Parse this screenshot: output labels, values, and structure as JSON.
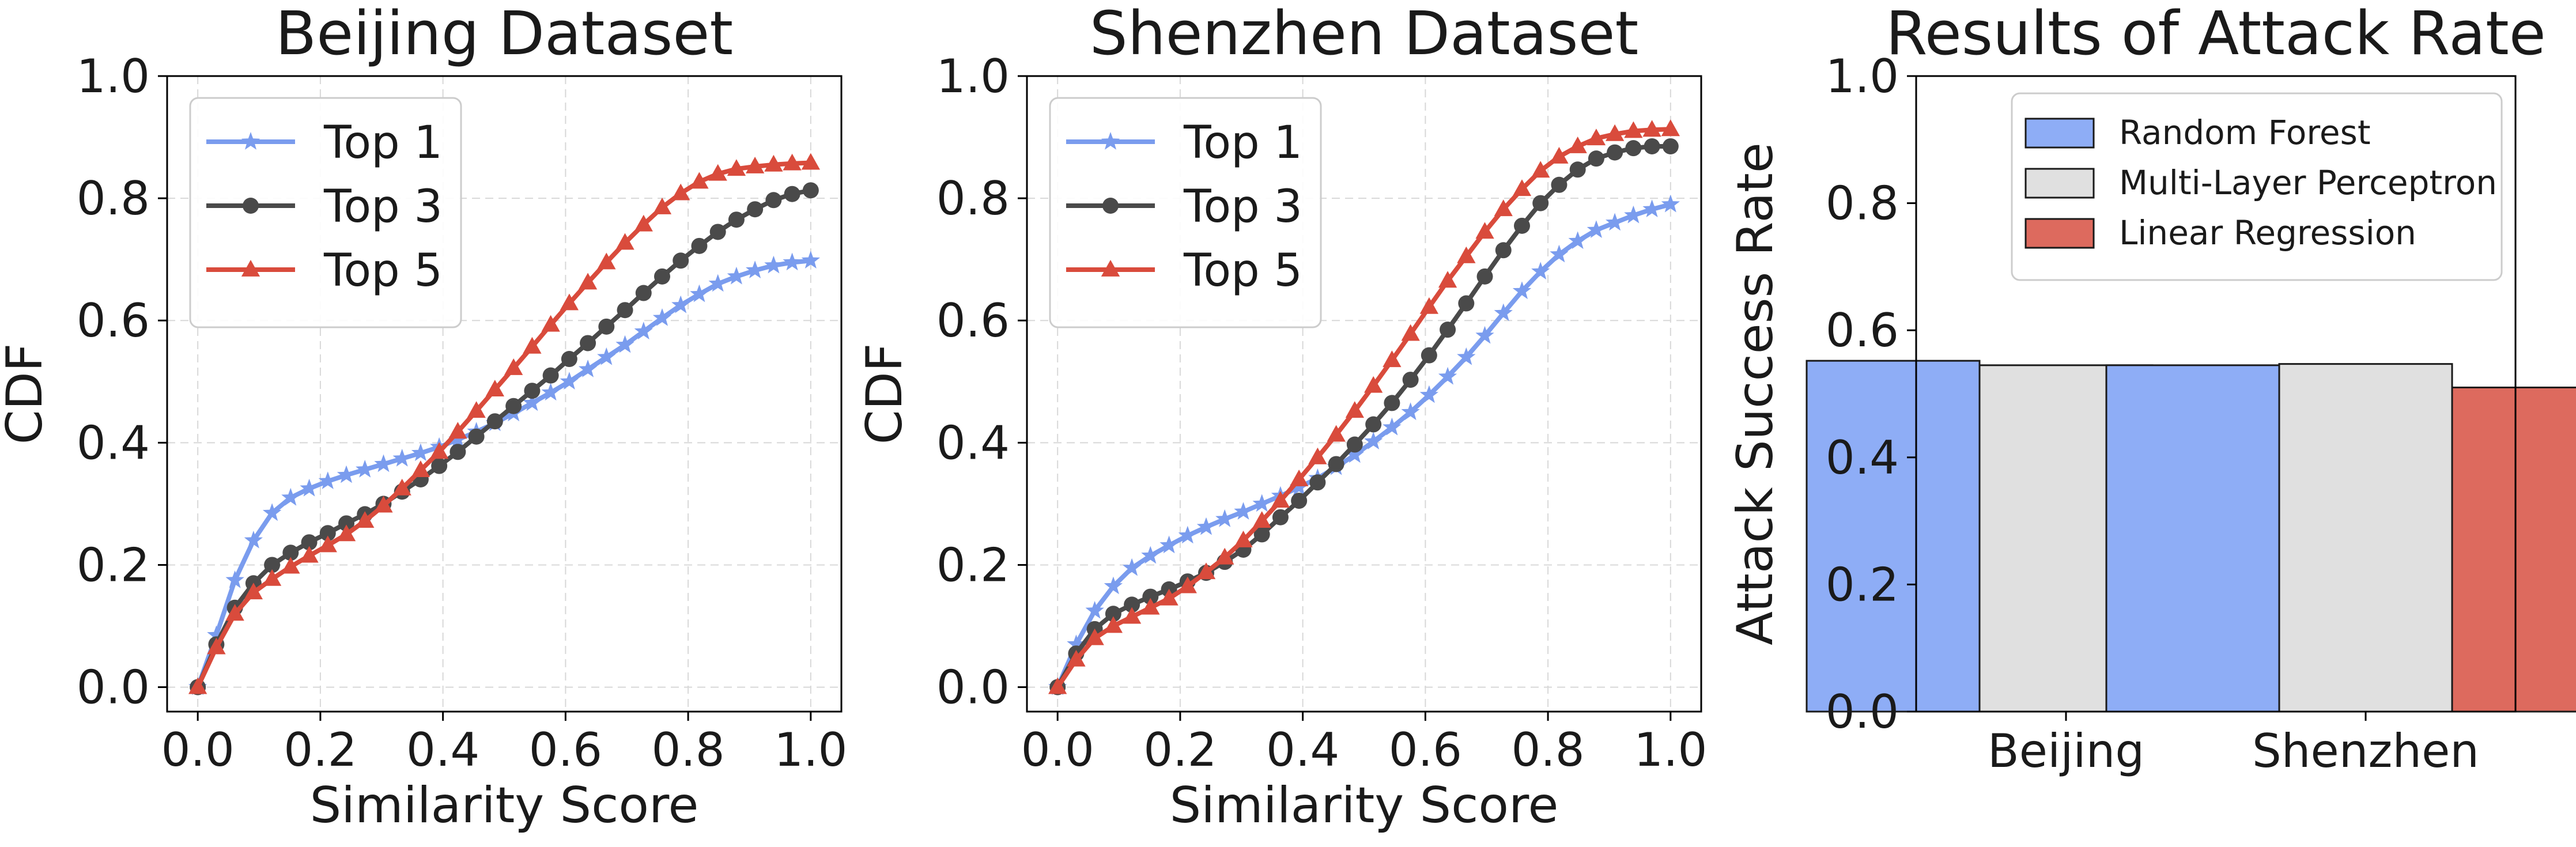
{
  "colors": {
    "top1": "#7a9cee",
    "top3": "#4a4a4a",
    "top5": "#d94b3c",
    "random_forest": "#8eadf6",
    "mlp": "#e0e0e0",
    "linear_regression": "#dd6a5e"
  },
  "chart_data": [
    {
      "type": "line",
      "title": "Beijing Dataset",
      "xlabel": "Similarity Score",
      "ylabel": "CDF",
      "xlim": [
        -0.05,
        1.05
      ],
      "ylim": [
        -0.04,
        1.0
      ],
      "xticks": [
        "0.0",
        "0.2",
        "0.4",
        "0.6",
        "0.8",
        "1.0"
      ],
      "yticks": [
        "0.0",
        "0.2",
        "0.4",
        "0.6",
        "0.8",
        "1.0"
      ],
      "grid": true,
      "legend": "top-left",
      "x": [
        0.0,
        0.0303,
        0.0606,
        0.0909,
        0.1212,
        0.1515,
        0.1818,
        0.2121,
        0.2424,
        0.2727,
        0.303,
        0.3333,
        0.3636,
        0.3939,
        0.4242,
        0.4545,
        0.4848,
        0.5152,
        0.5455,
        0.5758,
        0.6061,
        0.6364,
        0.6667,
        0.697,
        0.7273,
        0.7576,
        0.7879,
        0.8182,
        0.8485,
        0.8788,
        0.9091,
        0.9394,
        0.9697,
        1.0
      ],
      "series": [
        {
          "name": "Top 1",
          "marker": "star",
          "values": [
            0.0,
            0.085,
            0.175,
            0.24,
            0.285,
            0.31,
            0.325,
            0.337,
            0.347,
            0.356,
            0.365,
            0.374,
            0.383,
            0.393,
            0.405,
            0.418,
            0.432,
            0.448,
            0.465,
            0.482,
            0.5,
            0.52,
            0.54,
            0.56,
            0.582,
            0.604,
            0.625,
            0.643,
            0.66,
            0.672,
            0.682,
            0.69,
            0.695,
            0.698
          ]
        },
        {
          "name": "Top 3",
          "marker": "circle",
          "values": [
            0.0,
            0.07,
            0.13,
            0.17,
            0.2,
            0.22,
            0.237,
            0.252,
            0.268,
            0.283,
            0.3,
            0.32,
            0.34,
            0.362,
            0.385,
            0.41,
            0.435,
            0.46,
            0.485,
            0.51,
            0.537,
            0.563,
            0.59,
            0.617,
            0.645,
            0.672,
            0.698,
            0.722,
            0.745,
            0.765,
            0.782,
            0.797,
            0.807,
            0.813
          ]
        },
        {
          "name": "Top 5",
          "marker": "triangle",
          "values": [
            0.0,
            0.065,
            0.12,
            0.155,
            0.177,
            0.197,
            0.215,
            0.232,
            0.25,
            0.272,
            0.297,
            0.325,
            0.355,
            0.385,
            0.418,
            0.452,
            0.487,
            0.522,
            0.557,
            0.593,
            0.628,
            0.662,
            0.695,
            0.727,
            0.757,
            0.785,
            0.808,
            0.827,
            0.84,
            0.848,
            0.852,
            0.855,
            0.857,
            0.858
          ]
        }
      ]
    },
    {
      "type": "line",
      "title": "Shenzhen Dataset",
      "xlabel": "Similarity Score",
      "ylabel": "CDF",
      "xlim": [
        -0.05,
        1.05
      ],
      "ylim": [
        -0.04,
        1.0
      ],
      "xticks": [
        "0.0",
        "0.2",
        "0.4",
        "0.6",
        "0.8",
        "1.0"
      ],
      "yticks": [
        "0.0",
        "0.2",
        "0.4",
        "0.6",
        "0.8",
        "1.0"
      ],
      "grid": true,
      "legend": "top-left",
      "x": [
        0.0,
        0.0303,
        0.0606,
        0.0909,
        0.1212,
        0.1515,
        0.1818,
        0.2121,
        0.2424,
        0.2727,
        0.303,
        0.3333,
        0.3636,
        0.3939,
        0.4242,
        0.4545,
        0.4848,
        0.5152,
        0.5455,
        0.5758,
        0.6061,
        0.6364,
        0.6667,
        0.697,
        0.7273,
        0.7576,
        0.7879,
        0.8182,
        0.8485,
        0.8788,
        0.9091,
        0.9394,
        0.9697,
        1.0
      ],
      "series": [
        {
          "name": "Top 1",
          "marker": "star",
          "values": [
            0.0,
            0.07,
            0.125,
            0.165,
            0.195,
            0.215,
            0.232,
            0.248,
            0.262,
            0.275,
            0.287,
            0.3,
            0.313,
            0.327,
            0.342,
            0.36,
            0.38,
            0.402,
            0.425,
            0.45,
            0.478,
            0.508,
            0.54,
            0.575,
            0.612,
            0.648,
            0.68,
            0.708,
            0.73,
            0.748,
            0.76,
            0.772,
            0.782,
            0.79
          ]
        },
        {
          "name": "Top 3",
          "marker": "circle",
          "values": [
            0.0,
            0.055,
            0.095,
            0.12,
            0.135,
            0.148,
            0.16,
            0.173,
            0.187,
            0.205,
            0.225,
            0.25,
            0.278,
            0.305,
            0.335,
            0.365,
            0.397,
            0.43,
            0.465,
            0.503,
            0.543,
            0.585,
            0.628,
            0.672,
            0.715,
            0.755,
            0.792,
            0.822,
            0.847,
            0.865,
            0.875,
            0.882,
            0.885,
            0.885
          ]
        },
        {
          "name": "Top 5",
          "marker": "triangle",
          "values": [
            0.0,
            0.045,
            0.08,
            0.1,
            0.115,
            0.13,
            0.145,
            0.165,
            0.188,
            0.212,
            0.24,
            0.272,
            0.305,
            0.34,
            0.376,
            0.413,
            0.452,
            0.493,
            0.535,
            0.578,
            0.622,
            0.665,
            0.705,
            0.745,
            0.782,
            0.815,
            0.845,
            0.868,
            0.885,
            0.898,
            0.905,
            0.91,
            0.912,
            0.913
          ]
        }
      ]
    },
    {
      "type": "bar",
      "title": "Results of Attack Rate",
      "xlabel": "",
      "ylabel": "Attack Success Rate",
      "ylim": [
        0,
        1.0
      ],
      "yticks": [
        "0.0",
        "0.2",
        "0.4",
        "0.6",
        "0.8",
        "1.0"
      ],
      "grid": false,
      "legend": "top-right",
      "categories": [
        "Beijing",
        "Shenzhen"
      ],
      "series": [
        {
          "name": "Random Forest",
          "values": [
            0.552,
            0.545
          ]
        },
        {
          "name": "Multi-Layer Perceptron",
          "values": [
            0.545,
            0.547
          ]
        },
        {
          "name": "Linear Regression",
          "values": [
            0.508,
            0.51
          ]
        }
      ]
    }
  ]
}
